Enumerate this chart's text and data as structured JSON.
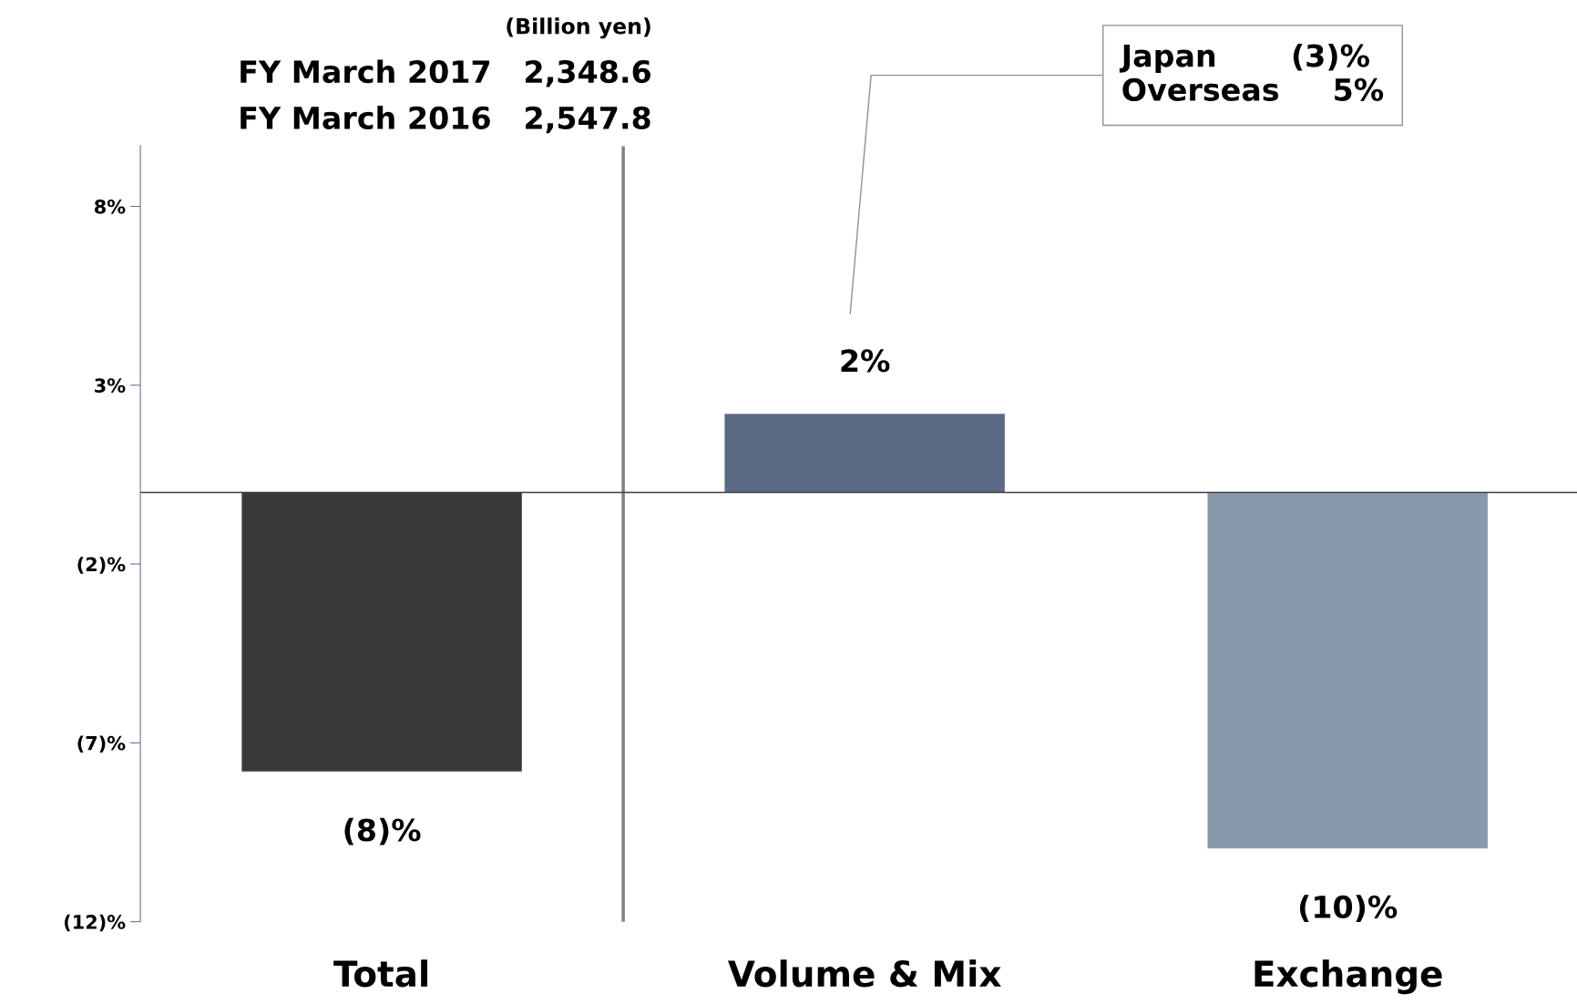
{
  "chart_data": {
    "type": "bar",
    "categories": [
      "Total",
      "Volume & Mix",
      "Exchange"
    ],
    "values": [
      -7.8,
      2.2,
      -9.95
    ],
    "value_labels": [
      "(8)%",
      "2%",
      "(10)%"
    ],
    "colors": [
      "#3a3a3a",
      "#5a6a85",
      "#8a98ab"
    ],
    "ylim": [
      -12,
      9.7
    ],
    "yticks": [
      {
        "value": 8,
        "label": "8%"
      },
      {
        "value": 3,
        "label": "3%"
      },
      {
        "value": -2,
        "label": "(2)%"
      },
      {
        "value": -7,
        "label": "(7)%"
      },
      {
        "value": -12,
        "label": "(12)%"
      }
    ],
    "grid": false,
    "legend": false,
    "annotations": [
      "(Billion yen)",
      "FY March 2017   2,348.6",
      "FY March 2016   2,547.8",
      "Japan       (3)%\nOverseas     5%"
    ]
  }
}
